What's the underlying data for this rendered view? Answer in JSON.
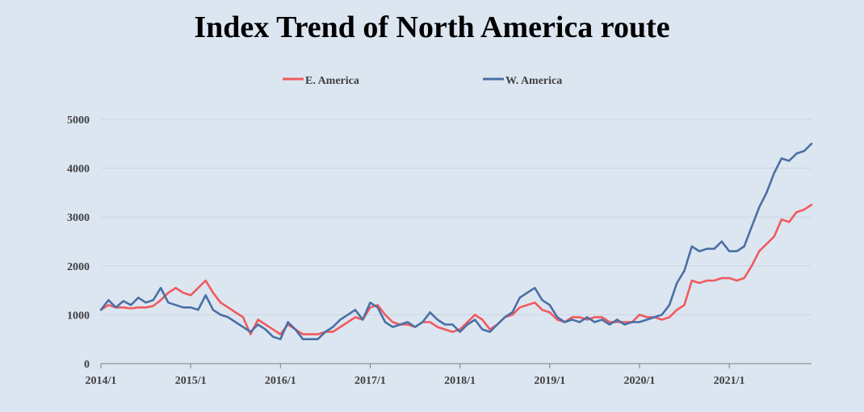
{
  "chart_data": {
    "type": "line",
    "title": "Index Trend of North America route",
    "xlabel": "",
    "ylabel": "",
    "x_ticks": [
      "2014/1",
      "2015/1",
      "2016/1",
      "2017/1",
      "2018/1",
      "2019/1",
      "2020/1",
      "2021/1"
    ],
    "x_range": [
      "2014-01",
      "2021-12"
    ],
    "y_ticks": [
      0,
      1000,
      2000,
      3000,
      4000,
      5000
    ],
    "ylim": [
      0,
      5000
    ],
    "grid": "horizontal",
    "legend_position": "top",
    "series": [
      {
        "name": "E. America",
        "color": "#f05a5e",
        "points": [
          [
            "2014-01",
            1100
          ],
          [
            "2014-02",
            1200
          ],
          [
            "2014-03",
            1150
          ],
          [
            "2014-04",
            1150
          ],
          [
            "2014-05",
            1130
          ],
          [
            "2014-06",
            1150
          ],
          [
            "2014-07",
            1150
          ],
          [
            "2014-08",
            1180
          ],
          [
            "2014-09",
            1300
          ],
          [
            "2014-10",
            1450
          ],
          [
            "2014-11",
            1550
          ],
          [
            "2014-12",
            1450
          ],
          [
            "2015-01",
            1400
          ],
          [
            "2015-02",
            1550
          ],
          [
            "2015-03",
            1700
          ],
          [
            "2015-04",
            1450
          ],
          [
            "2015-05",
            1250
          ],
          [
            "2015-06",
            1150
          ],
          [
            "2015-07",
            1050
          ],
          [
            "2015-08",
            950
          ],
          [
            "2015-09",
            600
          ],
          [
            "2015-10",
            900
          ],
          [
            "2015-11",
            800
          ],
          [
            "2015-12",
            700
          ],
          [
            "2016-01",
            600
          ],
          [
            "2016-02",
            800
          ],
          [
            "2016-03",
            700
          ],
          [
            "2016-04",
            600
          ],
          [
            "2016-05",
            600
          ],
          [
            "2016-06",
            600
          ],
          [
            "2016-07",
            650
          ],
          [
            "2016-08",
            650
          ],
          [
            "2016-09",
            750
          ],
          [
            "2016-10",
            850
          ],
          [
            "2016-11",
            950
          ],
          [
            "2016-12",
            900
          ],
          [
            "2017-01",
            1150
          ],
          [
            "2017-02",
            1200
          ],
          [
            "2017-03",
            1000
          ],
          [
            "2017-04",
            850
          ],
          [
            "2017-05",
            800
          ],
          [
            "2017-06",
            800
          ],
          [
            "2017-07",
            750
          ],
          [
            "2017-08",
            850
          ],
          [
            "2017-09",
            850
          ],
          [
            "2017-10",
            750
          ],
          [
            "2017-11",
            700
          ],
          [
            "2017-12",
            650
          ],
          [
            "2018-01",
            700
          ],
          [
            "2018-02",
            850
          ],
          [
            "2018-03",
            1000
          ],
          [
            "2018-04",
            900
          ],
          [
            "2018-05",
            700
          ],
          [
            "2018-06",
            800
          ],
          [
            "2018-07",
            950
          ],
          [
            "2018-08",
            1000
          ],
          [
            "2018-09",
            1150
          ],
          [
            "2018-10",
            1200
          ],
          [
            "2018-11",
            1250
          ],
          [
            "2018-12",
            1100
          ],
          [
            "2019-01",
            1050
          ],
          [
            "2019-02",
            900
          ],
          [
            "2019-03",
            850
          ],
          [
            "2019-04",
            950
          ],
          [
            "2019-05",
            950
          ],
          [
            "2019-06",
            900
          ],
          [
            "2019-07",
            950
          ],
          [
            "2019-08",
            950
          ],
          [
            "2019-09",
            850
          ],
          [
            "2019-10",
            850
          ],
          [
            "2019-11",
            850
          ],
          [
            "2019-12",
            850
          ],
          [
            "2020-01",
            1000
          ],
          [
            "2020-02",
            950
          ],
          [
            "2020-03",
            950
          ],
          [
            "2020-04",
            900
          ],
          [
            "2020-05",
            950
          ],
          [
            "2020-06",
            1100
          ],
          [
            "2020-07",
            1200
          ],
          [
            "2020-08",
            1700
          ],
          [
            "2020-09",
            1650
          ],
          [
            "2020-10",
            1700
          ],
          [
            "2020-11",
            1700
          ],
          [
            "2020-12",
            1750
          ],
          [
            "2021-01",
            1750
          ],
          [
            "2021-02",
            1700
          ],
          [
            "2021-03",
            1750
          ],
          [
            "2021-04",
            2000
          ],
          [
            "2021-05",
            2300
          ],
          [
            "2021-06",
            2450
          ],
          [
            "2021-07",
            2600
          ],
          [
            "2021-08",
            2950
          ],
          [
            "2021-09",
            2900
          ],
          [
            "2021-10",
            3100
          ],
          [
            "2021-11",
            3150
          ],
          [
            "2021-12",
            3250
          ]
        ]
      },
      {
        "name": "W. America",
        "color": "#4a6fa5",
        "points": [
          [
            "2014-01",
            1100
          ],
          [
            "2014-02",
            1300
          ],
          [
            "2014-03",
            1150
          ],
          [
            "2014-04",
            1280
          ],
          [
            "2014-05",
            1200
          ],
          [
            "2014-06",
            1350
          ],
          [
            "2014-07",
            1250
          ],
          [
            "2014-08",
            1300
          ],
          [
            "2014-09",
            1550
          ],
          [
            "2014-10",
            1250
          ],
          [
            "2014-11",
            1200
          ],
          [
            "2014-12",
            1150
          ],
          [
            "2015-01",
            1150
          ],
          [
            "2015-02",
            1100
          ],
          [
            "2015-03",
            1400
          ],
          [
            "2015-04",
            1100
          ],
          [
            "2015-05",
            1000
          ],
          [
            "2015-06",
            950
          ],
          [
            "2015-07",
            850
          ],
          [
            "2015-08",
            750
          ],
          [
            "2015-09",
            650
          ],
          [
            "2015-10",
            800
          ],
          [
            "2015-11",
            700
          ],
          [
            "2015-12",
            550
          ],
          [
            "2016-01",
            500
          ],
          [
            "2016-02",
            850
          ],
          [
            "2016-03",
            700
          ],
          [
            "2016-04",
            500
          ],
          [
            "2016-05",
            500
          ],
          [
            "2016-06",
            500
          ],
          [
            "2016-07",
            650
          ],
          [
            "2016-08",
            750
          ],
          [
            "2016-09",
            900
          ],
          [
            "2016-10",
            1000
          ],
          [
            "2016-11",
            1100
          ],
          [
            "2016-12",
            900
          ],
          [
            "2017-01",
            1250
          ],
          [
            "2017-02",
            1150
          ],
          [
            "2017-03",
            850
          ],
          [
            "2017-04",
            750
          ],
          [
            "2017-05",
            800
          ],
          [
            "2017-06",
            850
          ],
          [
            "2017-07",
            750
          ],
          [
            "2017-08",
            850
          ],
          [
            "2017-09",
            1050
          ],
          [
            "2017-10",
            900
          ],
          [
            "2017-11",
            800
          ],
          [
            "2017-12",
            800
          ],
          [
            "2018-01",
            650
          ],
          [
            "2018-02",
            800
          ],
          [
            "2018-03",
            900
          ],
          [
            "2018-04",
            700
          ],
          [
            "2018-05",
            650
          ],
          [
            "2018-06",
            800
          ],
          [
            "2018-07",
            950
          ],
          [
            "2018-08",
            1050
          ],
          [
            "2018-09",
            1350
          ],
          [
            "2018-10",
            1450
          ],
          [
            "2018-11",
            1550
          ],
          [
            "2018-12",
            1300
          ],
          [
            "2019-01",
            1200
          ],
          [
            "2019-02",
            950
          ],
          [
            "2019-03",
            850
          ],
          [
            "2019-04",
            900
          ],
          [
            "2019-05",
            850
          ],
          [
            "2019-06",
            950
          ],
          [
            "2019-07",
            850
          ],
          [
            "2019-08",
            900
          ],
          [
            "2019-09",
            800
          ],
          [
            "2019-10",
            900
          ],
          [
            "2019-11",
            800
          ],
          [
            "2019-12",
            850
          ],
          [
            "2020-01",
            850
          ],
          [
            "2020-02",
            900
          ],
          [
            "2020-03",
            950
          ],
          [
            "2020-04",
            1000
          ],
          [
            "2020-05",
            1200
          ],
          [
            "2020-06",
            1650
          ],
          [
            "2020-07",
            1900
          ],
          [
            "2020-08",
            2400
          ],
          [
            "2020-09",
            2300
          ],
          [
            "2020-10",
            2350
          ],
          [
            "2020-11",
            2350
          ],
          [
            "2020-12",
            2500
          ],
          [
            "2021-01",
            2300
          ],
          [
            "2021-02",
            2300
          ],
          [
            "2021-03",
            2400
          ],
          [
            "2021-04",
            2800
          ],
          [
            "2021-05",
            3200
          ],
          [
            "2021-06",
            3500
          ],
          [
            "2021-07",
            3900
          ],
          [
            "2021-08",
            4200
          ],
          [
            "2021-09",
            4150
          ],
          [
            "2021-10",
            4300
          ],
          [
            "2021-11",
            4350
          ],
          [
            "2021-12",
            4500
          ]
        ]
      }
    ]
  }
}
